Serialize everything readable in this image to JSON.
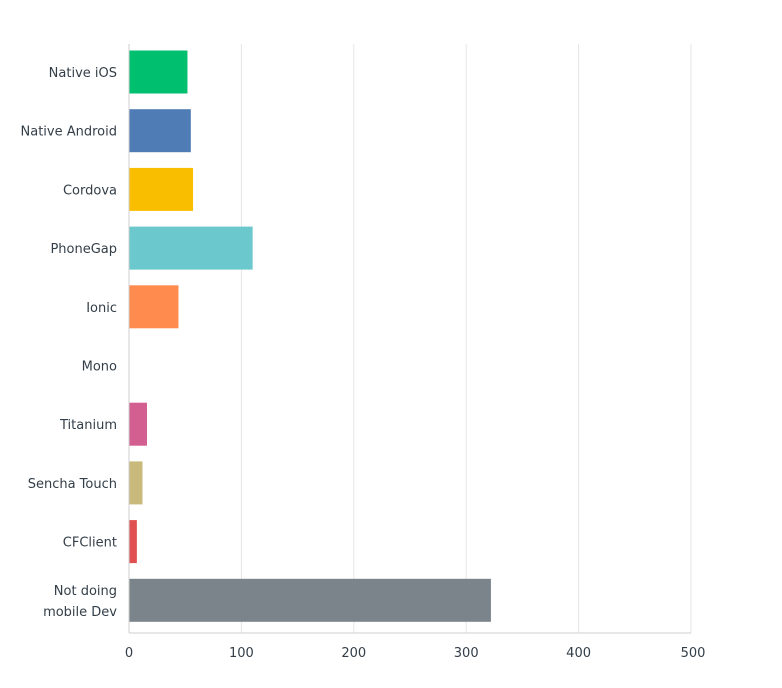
{
  "chart_data": {
    "type": "bar",
    "orientation": "horizontal",
    "categories": [
      "Native iOS",
      "Native Android",
      "Cordova",
      "PhoneGap",
      "Ionic",
      "Mono",
      "Titanium",
      "Sencha Touch",
      "CFClient",
      "Not doing mobile Dev"
    ],
    "category_lines": [
      [
        "Native iOS"
      ],
      [
        "Native Android"
      ],
      [
        "Cordova"
      ],
      [
        "PhoneGap"
      ],
      [
        "Ionic"
      ],
      [
        "Mono"
      ],
      [
        "Titanium"
      ],
      [
        "Sencha Touch"
      ],
      [
        "CFClient"
      ],
      [
        "Not doing",
        "mobile Dev"
      ]
    ],
    "values": [
      52,
      55,
      57,
      110,
      44,
      0,
      16,
      12,
      7,
      322
    ],
    "colors": [
      "#00bf6f",
      "#507cb6",
      "#f9be00",
      "#6bc8cd",
      "#ff8b4f",
      "#7f7fff",
      "#d25f90",
      "#c9b97d",
      "#e05050",
      "#7b848b"
    ],
    "xlim": [
      0,
      500
    ],
    "xticks": [
      0,
      100,
      200,
      300,
      400,
      500
    ],
    "grid": true,
    "legend": "none",
    "title": "",
    "xlabel": "",
    "ylabel": ""
  }
}
